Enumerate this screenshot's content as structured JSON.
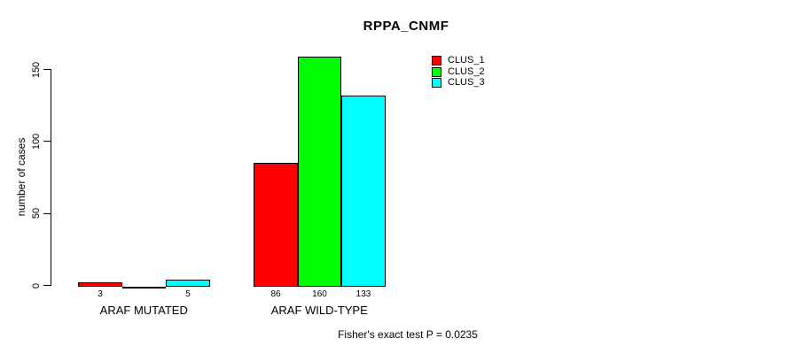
{
  "title": "RPPA_CNMF",
  "chart_data": {
    "type": "bar",
    "title": "RPPA_CNMF",
    "xlabel": "",
    "ylabel": "number of cases",
    "ylim": [
      0,
      160
    ],
    "yticks": [
      "0",
      "50",
      "100",
      "150"
    ],
    "ytick_values": [
      0,
      50,
      100,
      150
    ],
    "grid": false,
    "legend_position": "top-right",
    "categories": [
      "ARAF MUTATED",
      "ARAF WILD-TYPE"
    ],
    "series": [
      {
        "name": "CLUS_1",
        "color": "#ff0000",
        "values": [
          3,
          86
        ]
      },
      {
        "name": "CLUS_2",
        "color": "#00ff00",
        "values": [
          0,
          160
        ]
      },
      {
        "name": "CLUS_3",
        "color": "#00ffff",
        "values": [
          5,
          133
        ]
      }
    ],
    "bar_value_labels": [
      [
        "3",
        "",
        "5"
      ],
      [
        "86",
        "160",
        "133"
      ]
    ],
    "annotation": "Fisher's exact test P = 0.0235"
  }
}
